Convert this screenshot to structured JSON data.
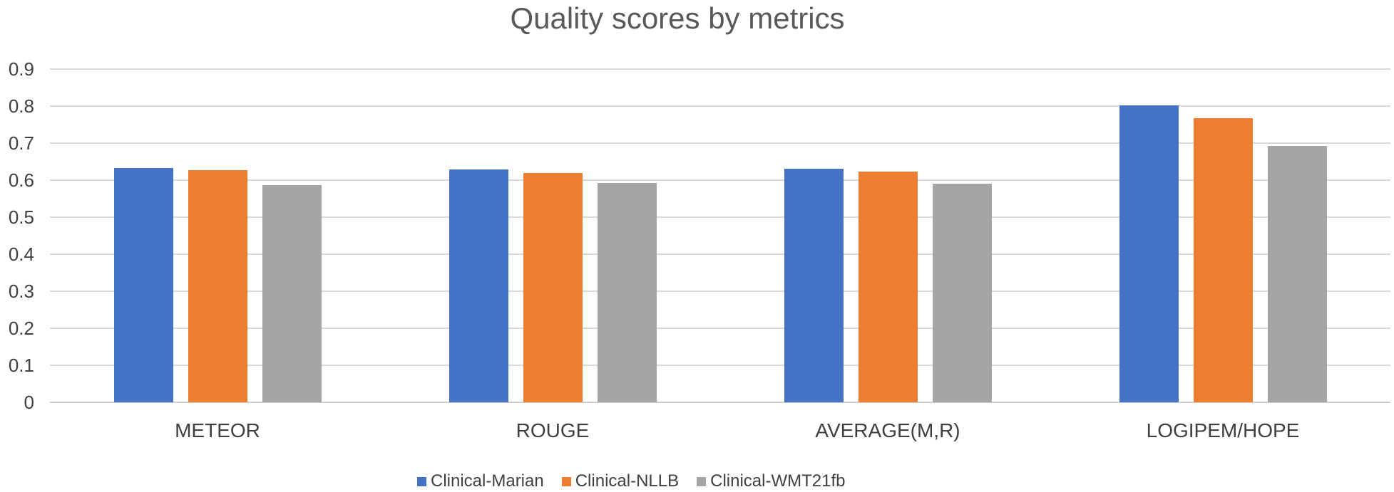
{
  "chart_data": {
    "type": "bar",
    "title": "Quality scores by metrics",
    "categories": [
      "METEOR",
      "ROUGE",
      "AVERAGE(M,R)",
      "LOGIPEM/HOPE"
    ],
    "series": [
      {
        "name": "Clinical-Marian",
        "color": "#4472C4",
        "values": [
          0.633,
          0.628,
          0.63,
          0.802
        ]
      },
      {
        "name": "Clinical-NLLB",
        "color": "#ED7D31",
        "values": [
          0.627,
          0.62,
          0.623,
          0.768
        ]
      },
      {
        "name": "Clinical-WMT21fb",
        "color": "#A5A5A5",
        "values": [
          0.587,
          0.593,
          0.59,
          0.692
        ]
      }
    ],
    "xlabel": "",
    "ylabel": "",
    "ylim": [
      0,
      0.9
    ],
    "y_ticks": [
      0,
      0.1,
      0.2,
      0.3,
      0.4,
      0.5,
      0.6,
      0.7,
      0.8,
      0.9
    ],
    "y_tick_labels": [
      "0",
      "0.1",
      "0.2",
      "0.3",
      "0.4",
      "0.5",
      "0.6",
      "0.7",
      "0.8",
      "0.9"
    ],
    "grid": true,
    "legend_position": "bottom"
  },
  "colors": {
    "background": "#FFFFFF",
    "title_text": "#595959",
    "axis_text": "#404040",
    "gridline": "#D9D9D9"
  }
}
